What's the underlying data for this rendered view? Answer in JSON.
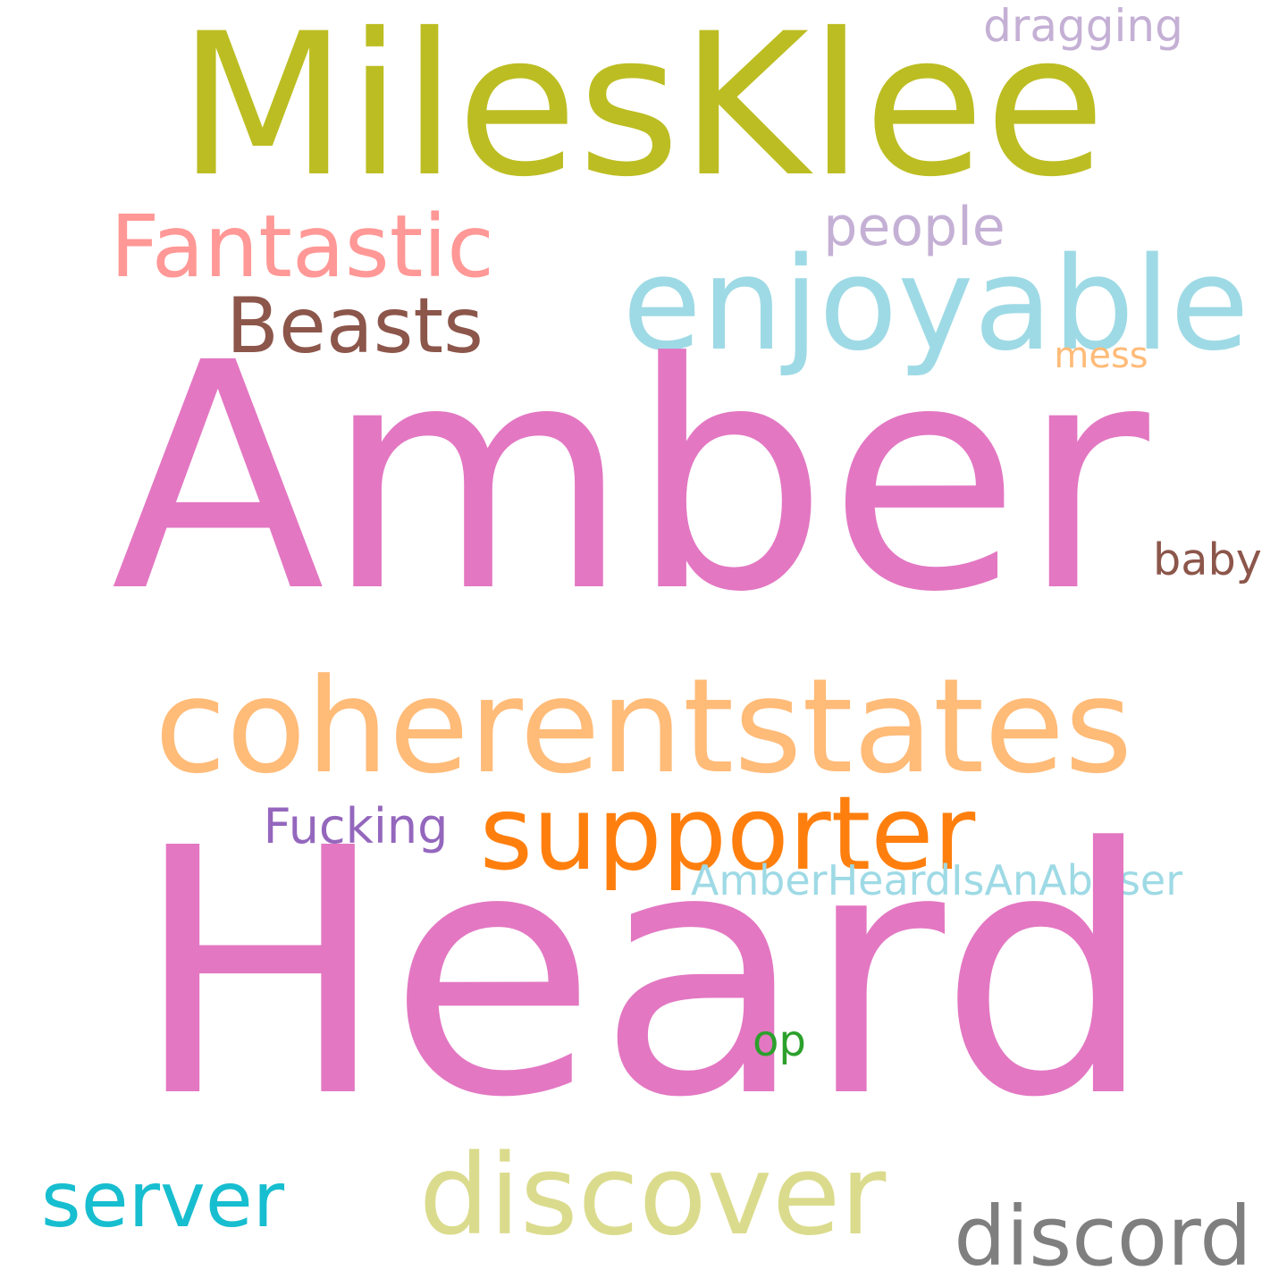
{
  "background": "#ffffff",
  "words": [
    {
      "text": "MilesKlee",
      "color": "#bcbd22"
    },
    {
      "text": "dragging",
      "color": "#c5b0d5"
    },
    {
      "text": "Fantastic",
      "color": "#ff9896"
    },
    {
      "text": "people",
      "color": "#c5b0d5"
    },
    {
      "text": "enjoyable",
      "color": "#9edae5"
    },
    {
      "text": "Beasts",
      "color": "#8c564b"
    },
    {
      "text": "mess",
      "color": "#ffbb78"
    },
    {
      "text": "Amber",
      "color": "#e377c2"
    },
    {
      "text": "baby",
      "color": "#8c564b"
    },
    {
      "text": "coherentstates",
      "color": "#ffbb78"
    },
    {
      "text": "supporter",
      "color": "#ff7f0e"
    },
    {
      "text": "Fucking",
      "color": "#9467bd"
    },
    {
      "text": "AmberHeardIsAnAbuser",
      "color": "#9edae5"
    },
    {
      "text": "Heard",
      "color": "#e377c2"
    },
    {
      "text": "op",
      "color": "#2ca02c"
    },
    {
      "text": "server",
      "color": "#17becf"
    },
    {
      "text": "discover",
      "color": "#dbdb8d"
    },
    {
      "text": "discord",
      "color": "#7f7f7f"
    }
  ]
}
